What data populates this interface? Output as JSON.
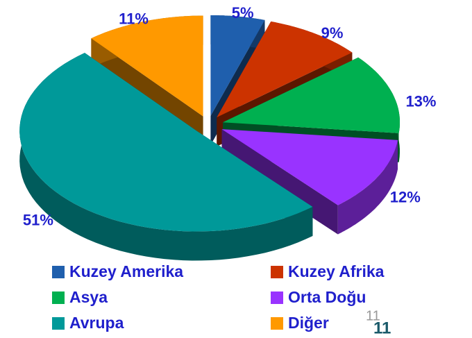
{
  "chart_data": {
    "type": "pie3d",
    "categories": [
      "Kuzey Amerika",
      "Kuzey Afrika",
      "Asya",
      "Orta Doğu",
      "Avrupa",
      "Diğer"
    ],
    "values": [
      5,
      9,
      13,
      12,
      51,
      11
    ],
    "value_labels": [
      "5%",
      "9%",
      "13%",
      "12%",
      "51%",
      "11%"
    ],
    "colors": [
      "#1f5fad",
      "#cc3300",
      "#00b050",
      "#9933ff",
      "#009999",
      "#ff9900"
    ],
    "legend": "bottom"
  },
  "slide_number_placeholder": "11",
  "slide_number": "11"
}
